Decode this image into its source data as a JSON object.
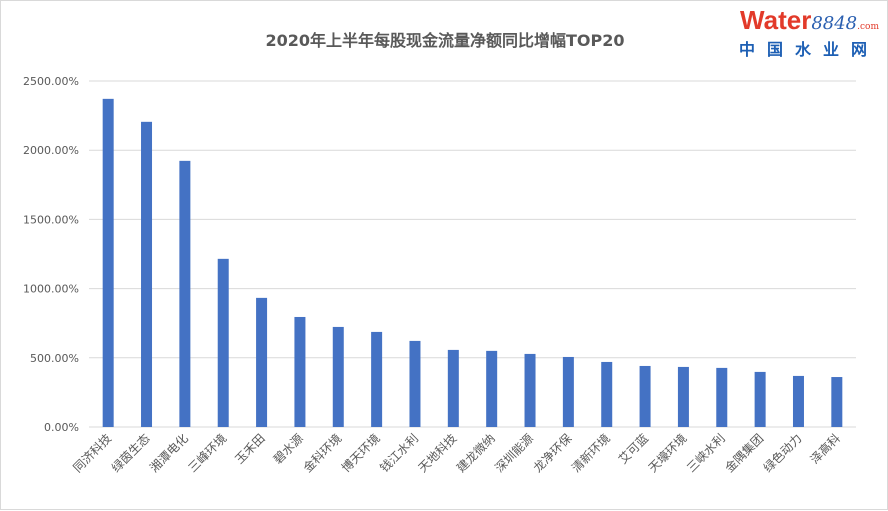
{
  "chart_data": {
    "type": "bar",
    "title": "2020年上半年每股现金流量净额同比增幅TOP20",
    "categories": [
      "同济科技",
      "绿茵生态",
      "湘潭电化",
      "三峰环境",
      "玉禾田",
      "碧水源",
      "金科环境",
      "博天环境",
      "钱江水利",
      "天地科技",
      "建龙微纳",
      "深圳能源",
      "龙净环保",
      "清新环境",
      "艾可蓝",
      "天壕环境",
      "三峡水利",
      "金隅集团",
      "绿色动力",
      "泽高科"
    ],
    "values": [
      2371,
      2205,
      1923,
      1215,
      933,
      795,
      723,
      687,
      622,
      557,
      550,
      528,
      506,
      470,
      441,
      434,
      427,
      398,
      369,
      361
    ],
    "unit": "%",
    "ylim": [
      0,
      2500
    ],
    "yticks": [
      "0.00%",
      "500.00%",
      "1000.00%",
      "1500.00%",
      "2000.00%",
      "2500.00%"
    ],
    "grid": true,
    "bar_color": "#4472c4"
  },
  "watermark": {
    "brand": "Water",
    "number": "8848",
    "suffix": ".com",
    "cn": "中国水业网"
  }
}
